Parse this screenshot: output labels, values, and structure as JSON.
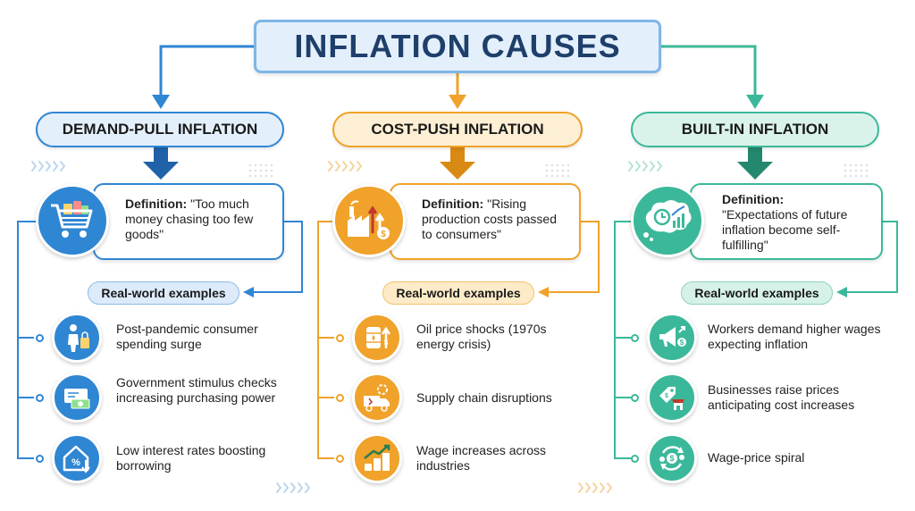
{
  "title": "INFLATION CAUSES",
  "colors": {
    "blue": "#2f86d3",
    "orange": "#f0a22a",
    "teal": "#3bb89a",
    "title_border": "#7fb6e6"
  },
  "columns": [
    {
      "heading": "DEMAND-PULL INFLATION",
      "definition_label": "Definition:",
      "definition_text": "\"Too much money chasing too few goods\"",
      "definition_icon": "shopping-cart-icon",
      "examples_label": "Real-world examples",
      "examples": [
        {
          "text": "Post-pandemic consumer spending surge",
          "icon": "shopper-bags-icon"
        },
        {
          "text": "Government stimulus checks increasing purchasing power",
          "icon": "stimulus-check-icon"
        },
        {
          "text": "Low interest rates boosting borrowing",
          "icon": "house-percent-icon"
        }
      ]
    },
    {
      "heading": "COST-PUSH INFLATION",
      "definition_label": "Definition:",
      "definition_text": "\"Rising production costs passed to consumers\"",
      "definition_icon": "factory-rising-cost-icon",
      "examples_label": "Real-world examples",
      "examples": [
        {
          "text": "Oil price shocks (1970s energy crisis)",
          "icon": "oil-barrel-icon"
        },
        {
          "text": "Supply chain disruptions",
          "icon": "delivery-truck-icon"
        },
        {
          "text": "Wage increases across industries",
          "icon": "coin-stacks-growth-icon"
        }
      ]
    },
    {
      "heading": "BUILT-IN INFLATION",
      "definition_label": "Definition:",
      "definition_text": "\"Expectations of future inflation become self-fulfilling\"",
      "definition_icon": "thought-bubble-clock-chart-icon",
      "examples_label": "Real-world examples",
      "examples": [
        {
          "text": "Workers demand higher wages expecting inflation",
          "icon": "megaphone-money-icon"
        },
        {
          "text": "Businesses raise prices anticipating cost increases",
          "icon": "price-tag-store-icon"
        },
        {
          "text": "Wage-price spiral",
          "icon": "dollar-cycle-icon"
        }
      ]
    }
  ]
}
